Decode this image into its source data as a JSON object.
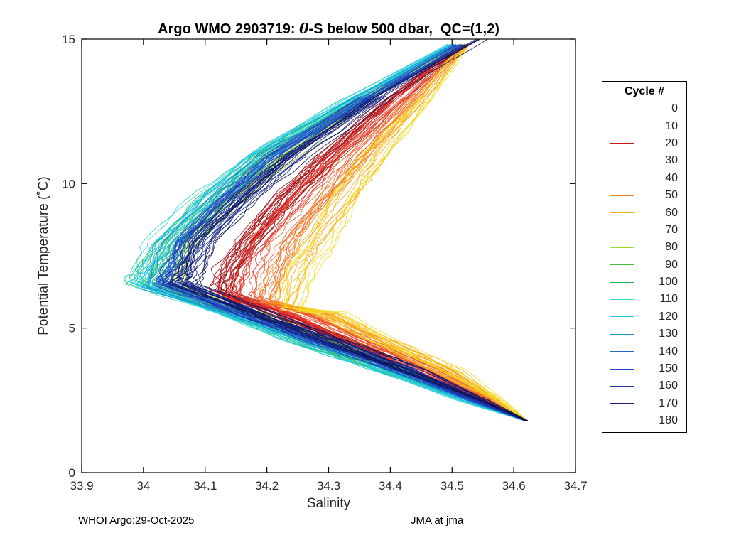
{
  "figure": {
    "title": {
      "pre": "Argo WMO 2903719: ",
      "theta": "θ",
      "post": "-S below 500 dbar,  QC=(1,2)"
    },
    "footer_left": "WHOI Argo:29-Oct-2025",
    "footer_right": "JMA at jma"
  },
  "chart_data": {
    "type": "line",
    "title": "Argo WMO 2903719: θ-S below 500 dbar,  QC=(1,2)",
    "xlabel": "Salinity",
    "ylabel": "Potential Temperature (˚C)",
    "xlim": [
      33.9,
      34.7
    ],
    "ylim": [
      0,
      15
    ],
    "xticks": [
      "33.9",
      "34",
      "34.1",
      "34.2",
      "34.3",
      "34.4",
      "34.5",
      "34.6",
      "34.7"
    ],
    "yticks": [
      "0",
      "5",
      "10",
      "15"
    ],
    "grid": false,
    "legend": {
      "title": "Cycle #",
      "position": "right-outside"
    },
    "series": [
      {
        "label": "0",
        "color": "#800000",
        "points": [
          [
            34.52,
            14.8
          ],
          [
            34.41,
            13
          ],
          [
            34.3,
            11
          ],
          [
            34.23,
            9.5
          ],
          [
            34.17,
            8
          ],
          [
            34.14,
            7
          ],
          [
            34.13,
            6.2
          ],
          [
            34.22,
            5.5
          ],
          [
            34.33,
            4.5
          ],
          [
            34.44,
            3.5
          ],
          [
            34.55,
            2.5
          ],
          [
            34.62,
            1.8
          ]
        ]
      },
      {
        "label": "10",
        "color": "#A50F15",
        "points": [
          [
            34.52,
            14.8
          ],
          [
            34.4,
            13
          ],
          [
            34.29,
            11
          ],
          [
            34.22,
            9.5
          ],
          [
            34.16,
            8
          ],
          [
            34.13,
            7
          ],
          [
            34.12,
            6.3
          ],
          [
            34.21,
            5.5
          ],
          [
            34.32,
            4.5
          ],
          [
            34.43,
            3.5
          ],
          [
            34.54,
            2.5
          ],
          [
            34.62,
            1.8
          ]
        ]
      },
      {
        "label": "20",
        "color": "#CB181D",
        "points": [
          [
            34.51,
            14.8
          ],
          [
            34.41,
            13
          ],
          [
            34.31,
            11
          ],
          [
            34.24,
            9.5
          ],
          [
            34.18,
            8
          ],
          [
            34.15,
            7
          ],
          [
            34.14,
            6.0
          ],
          [
            34.24,
            5.5
          ],
          [
            34.34,
            4.5
          ],
          [
            34.45,
            3.5
          ],
          [
            34.55,
            2.5
          ],
          [
            34.62,
            1.8
          ]
        ]
      },
      {
        "label": "30",
        "color": "#EF3B2C",
        "points": [
          [
            34.52,
            14.8
          ],
          [
            34.42,
            13
          ],
          [
            34.32,
            11
          ],
          [
            34.25,
            9.5
          ],
          [
            34.19,
            8
          ],
          [
            34.17,
            7
          ],
          [
            34.16,
            6.1
          ],
          [
            34.25,
            5.5
          ],
          [
            34.35,
            4.5
          ],
          [
            34.46,
            3.5
          ],
          [
            34.56,
            2.5
          ],
          [
            34.62,
            1.8
          ]
        ]
      },
      {
        "label": "40",
        "color": "#F05A28",
        "points": [
          [
            34.52,
            14.8
          ],
          [
            34.43,
            13
          ],
          [
            34.34,
            11
          ],
          [
            34.28,
            9.5
          ],
          [
            34.22,
            8
          ],
          [
            34.2,
            7
          ],
          [
            34.18,
            6.0
          ],
          [
            34.26,
            5.5
          ],
          [
            34.36,
            4.5
          ],
          [
            34.47,
            3.5
          ],
          [
            34.56,
            2.5
          ],
          [
            34.62,
            1.8
          ]
        ]
      },
      {
        "label": "50",
        "color": "#F58220",
        "points": [
          [
            34.52,
            14.8
          ],
          [
            34.44,
            13
          ],
          [
            34.35,
            11
          ],
          [
            34.29,
            9.5
          ],
          [
            34.24,
            8
          ],
          [
            34.21,
            7
          ],
          [
            34.2,
            5.9
          ],
          [
            34.28,
            5.5
          ],
          [
            34.38,
            4.5
          ],
          [
            34.48,
            3.5
          ],
          [
            34.57,
            2.5
          ],
          [
            34.62,
            1.8
          ]
        ]
      },
      {
        "label": "60",
        "color": "#FAAE17",
        "points": [
          [
            34.52,
            14.8
          ],
          [
            34.45,
            13
          ],
          [
            34.37,
            11
          ],
          [
            34.32,
            9.5
          ],
          [
            34.27,
            8
          ],
          [
            34.24,
            7
          ],
          [
            34.22,
            5.8
          ],
          [
            34.3,
            5.5
          ],
          [
            34.39,
            4.5
          ],
          [
            34.49,
            3.5
          ],
          [
            34.57,
            2.5
          ],
          [
            34.62,
            1.8
          ]
        ]
      },
      {
        "label": "70",
        "color": "#F2DC23",
        "points": [
          [
            34.52,
            14.8
          ],
          [
            34.46,
            13
          ],
          [
            34.38,
            11
          ],
          [
            34.33,
            9.5
          ],
          [
            34.29,
            8
          ],
          [
            34.26,
            7
          ],
          [
            34.24,
            5.7
          ],
          [
            34.31,
            5.5
          ],
          [
            34.4,
            4.5
          ],
          [
            34.5,
            3.5
          ],
          [
            34.58,
            2.5
          ],
          [
            34.62,
            1.8
          ]
        ]
      },
      {
        "label": "80",
        "color": "#9ADB23",
        "points": [
          [
            34.51,
            14.8
          ],
          [
            34.37,
            13
          ],
          [
            34.23,
            11
          ],
          [
            34.15,
            9.5
          ],
          [
            34.08,
            8
          ],
          [
            34.06,
            7
          ],
          [
            34.05,
            6.4
          ],
          [
            34.17,
            5.5
          ],
          [
            34.3,
            4.5
          ],
          [
            34.42,
            3.5
          ],
          [
            34.54,
            2.5
          ],
          [
            34.62,
            1.8
          ]
        ]
      },
      {
        "label": "90",
        "color": "#3FBF3F",
        "points": [
          [
            34.51,
            14.8
          ],
          [
            34.36,
            13
          ],
          [
            34.21,
            11
          ],
          [
            34.13,
            9.5
          ],
          [
            34.06,
            8
          ],
          [
            34.03,
            7
          ],
          [
            34.02,
            6.5
          ],
          [
            34.15,
            5.5
          ],
          [
            34.28,
            4.5
          ],
          [
            34.41,
            3.5
          ],
          [
            34.53,
            2.5
          ],
          [
            34.62,
            1.8
          ]
        ]
      },
      {
        "label": "100",
        "color": "#19B84C",
        "points": [
          [
            34.5,
            14.8
          ],
          [
            34.35,
            13
          ],
          [
            34.19,
            11
          ],
          [
            34.11,
            9.5
          ],
          [
            34.04,
            8
          ],
          [
            34.01,
            7
          ],
          [
            34.0,
            6.6
          ],
          [
            34.14,
            5.5
          ],
          [
            34.27,
            4.5
          ],
          [
            34.4,
            3.5
          ],
          [
            34.53,
            2.5
          ],
          [
            34.62,
            1.8
          ]
        ]
      },
      {
        "label": "110",
        "color": "#2BD8C8",
        "points": [
          [
            34.5,
            14.8
          ],
          [
            34.34,
            13
          ],
          [
            34.18,
            11
          ],
          [
            34.1,
            9.5
          ],
          [
            34.03,
            8
          ],
          [
            34.0,
            7
          ],
          [
            33.99,
            6.6
          ],
          [
            34.13,
            5.5
          ],
          [
            34.26,
            4.5
          ],
          [
            34.39,
            3.5
          ],
          [
            34.52,
            2.5
          ],
          [
            34.62,
            1.8
          ]
        ]
      },
      {
        "label": "120",
        "color": "#1FC8E8",
        "points": [
          [
            34.5,
            14.8
          ],
          [
            34.35,
            13
          ],
          [
            34.19,
            11
          ],
          [
            34.11,
            9.5
          ],
          [
            34.04,
            8
          ],
          [
            34.01,
            7
          ],
          [
            34.0,
            6.5
          ],
          [
            34.14,
            5.5
          ],
          [
            34.27,
            4.5
          ],
          [
            34.4,
            3.5
          ],
          [
            34.52,
            2.5
          ],
          [
            34.62,
            1.8
          ]
        ]
      },
      {
        "label": "130",
        "color": "#1596C8",
        "points": [
          [
            34.51,
            14.8
          ],
          [
            34.36,
            13
          ],
          [
            34.2,
            11
          ],
          [
            34.12,
            9.5
          ],
          [
            34.05,
            8
          ],
          [
            34.03,
            7
          ],
          [
            34.02,
            6.4
          ],
          [
            34.15,
            5.5
          ],
          [
            34.28,
            4.5
          ],
          [
            34.41,
            3.5
          ],
          [
            34.53,
            2.5
          ],
          [
            34.62,
            1.8
          ]
        ]
      },
      {
        "label": "140",
        "color": "#2065C8",
        "points": [
          [
            34.51,
            14.8
          ],
          [
            34.36,
            13
          ],
          [
            34.21,
            11
          ],
          [
            34.13,
            9.5
          ],
          [
            34.06,
            8
          ],
          [
            34.04,
            7
          ],
          [
            34.03,
            6.5
          ],
          [
            34.16,
            5.5
          ],
          [
            34.29,
            4.5
          ],
          [
            34.42,
            3.5
          ],
          [
            34.53,
            2.5
          ],
          [
            34.62,
            1.8
          ]
        ]
      },
      {
        "label": "150",
        "color": "#2244D4",
        "points": [
          [
            34.51,
            14.8
          ],
          [
            34.37,
            13
          ],
          [
            34.22,
            11
          ],
          [
            34.14,
            9.5
          ],
          [
            34.07,
            8
          ],
          [
            34.05,
            7
          ],
          [
            34.04,
            6.6
          ],
          [
            34.17,
            5.5
          ],
          [
            34.29,
            4.5
          ],
          [
            34.42,
            3.5
          ],
          [
            34.54,
            2.5
          ],
          [
            34.62,
            1.8
          ]
        ]
      },
      {
        "label": "160",
        "color": "#1B2FA8",
        "points": [
          [
            34.52,
            14.8
          ],
          [
            34.37,
            13
          ],
          [
            34.23,
            11
          ],
          [
            34.15,
            9.5
          ],
          [
            34.08,
            8
          ],
          [
            34.06,
            7
          ],
          [
            34.05,
            6.5
          ],
          [
            34.17,
            5.5
          ],
          [
            34.3,
            4.5
          ],
          [
            34.43,
            3.5
          ],
          [
            34.54,
            2.5
          ],
          [
            34.62,
            1.8
          ]
        ]
      },
      {
        "label": "170",
        "color": "#141F7E",
        "points": [
          [
            34.54,
            15.0
          ],
          [
            34.38,
            13
          ],
          [
            34.24,
            11
          ],
          [
            34.16,
            9.5
          ],
          [
            34.09,
            8
          ],
          [
            34.07,
            7
          ],
          [
            34.06,
            6.6
          ],
          [
            34.18,
            5.5
          ],
          [
            34.31,
            4.5
          ],
          [
            34.43,
            3.5
          ],
          [
            34.55,
            2.5
          ],
          [
            34.62,
            1.8
          ]
        ]
      },
      {
        "label": "180",
        "color": "#0D1455",
        "points": [
          [
            34.55,
            15.0
          ],
          [
            34.39,
            13
          ],
          [
            34.25,
            11
          ],
          [
            34.17,
            9.5
          ],
          [
            34.1,
            8
          ],
          [
            34.08,
            7
          ],
          [
            34.07,
            6.5
          ],
          [
            34.19,
            5.5
          ],
          [
            34.32,
            4.5
          ],
          [
            34.44,
            3.5
          ],
          [
            34.55,
            2.5
          ],
          [
            34.62,
            1.8
          ]
        ]
      }
    ]
  }
}
